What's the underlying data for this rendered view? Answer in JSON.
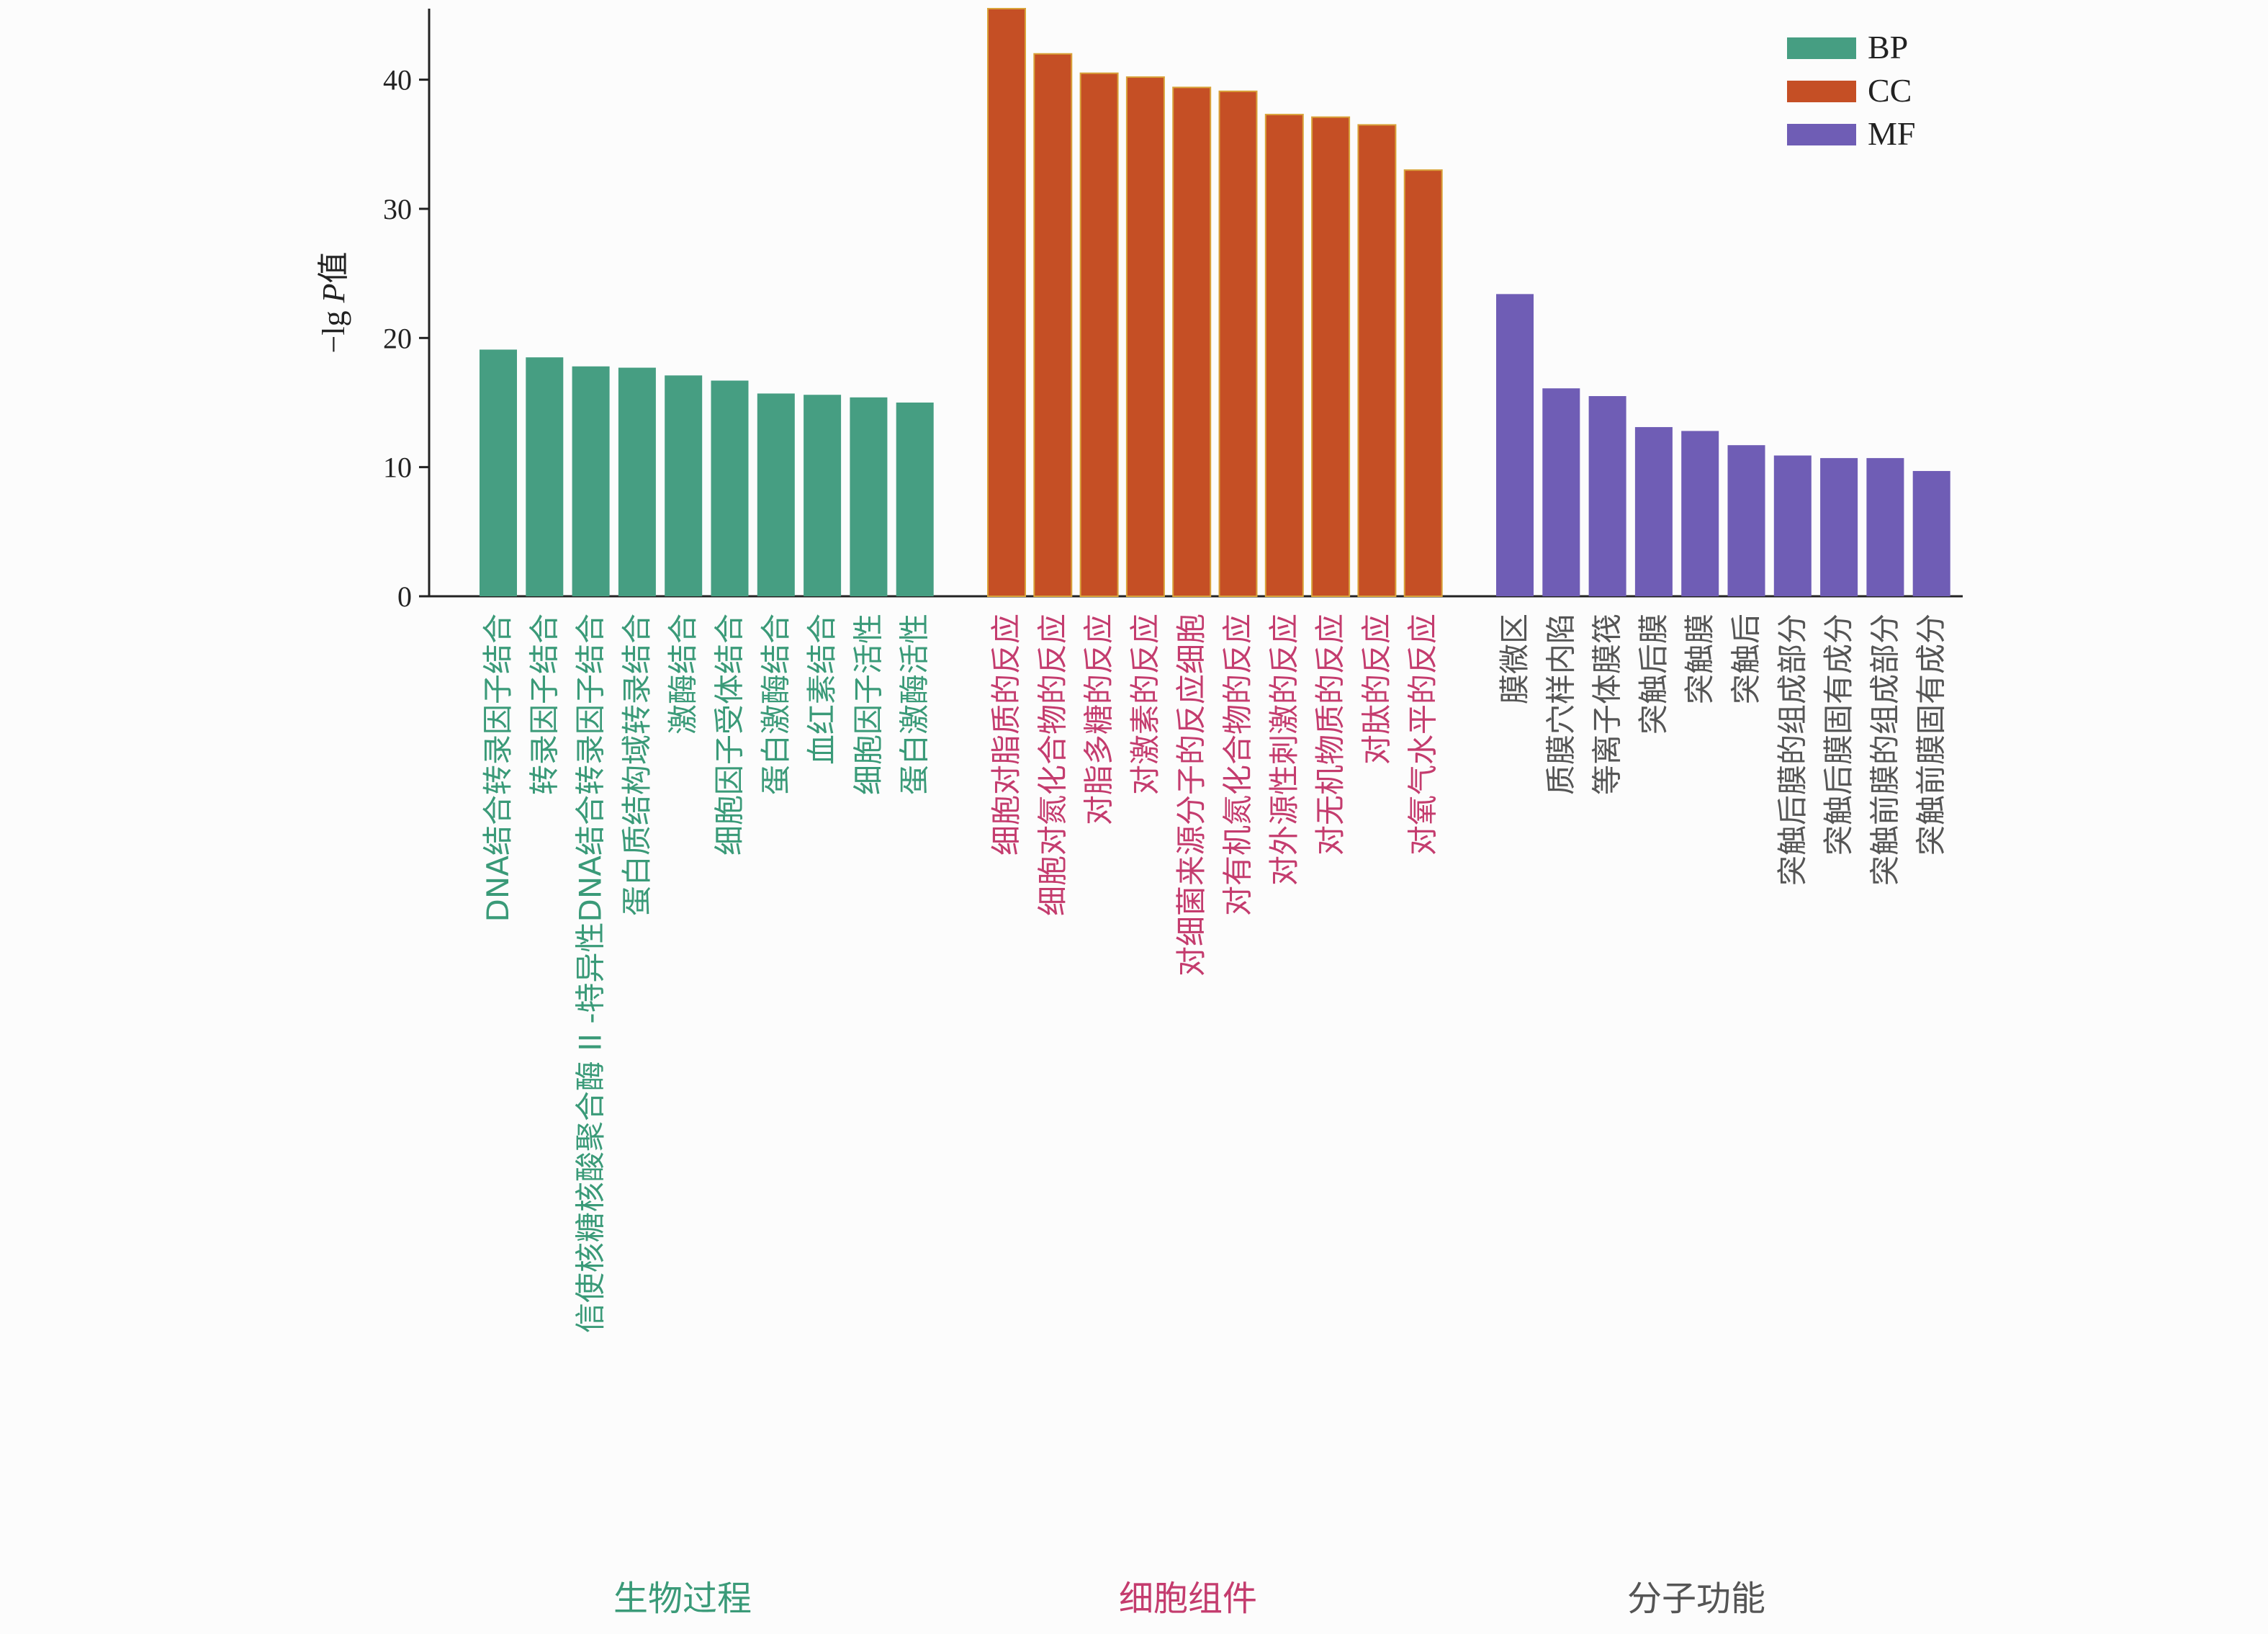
{
  "chart_data": {
    "type": "bar",
    "title": "",
    "ylabel_prefix": "−lg ",
    "ylabel_italic": "P",
    "ylabel_suffix": "值",
    "ylim": [
      0,
      45.5
    ],
    "yticks": [
      0,
      10,
      20,
      30,
      40
    ],
    "grid": false,
    "legend_position": "top-right",
    "series": [
      {
        "name": "BP",
        "color": "#469E82",
        "label_color": "#3A9A78",
        "group_label": "生物过程",
        "categories": [
          "DNA结合转录因子结合",
          "转录因子结合",
          "信使核糖核酸聚合酶 II -特异性DNA结合转录因子结合",
          "蛋白质结构域转录结合",
          "激酶结合",
          "细胞因子受体结合",
          "蛋白激酶结合",
          "血红素结合",
          "细胞因子活性",
          "蛋白激酶活性"
        ],
        "values": [
          19.1,
          18.5,
          17.8,
          17.7,
          17.1,
          16.7,
          15.7,
          15.6,
          15.4,
          15.0
        ]
      },
      {
        "name": "CC",
        "color": "#C54F25",
        "label_color": "#C43C6E",
        "group_label": "细胞组件",
        "categories": [
          "细胞对脂质的反应",
          "细胞对氮化合物的反应",
          "对脂多糖的反应",
          "对激素的反应",
          "对细菌来源分子的反应细胞",
          "对有机氮化合物的反应",
          "对外源性刺激的反应",
          "对无机物质的反应",
          "对肽的反应",
          "对氧气水平的反应"
        ],
        "values": [
          45.5,
          42.0,
          40.5,
          40.2,
          39.4,
          39.1,
          37.3,
          37.1,
          36.5,
          33.0
        ]
      },
      {
        "name": "MF",
        "color": "#6F5DB5",
        "label_color": "#555555",
        "group_label": "分子功能",
        "categories": [
          "膜微区",
          "质膜穴样内陷",
          "等离子体膜筏",
          "突触后膜",
          "突触膜",
          "突触后",
          "突触后膜的组成部分",
          "突触后膜固有成分",
          "突触前膜的组成部分",
          "突触前膜固有成分"
        ],
        "values": [
          23.4,
          16.1,
          15.5,
          13.1,
          12.8,
          11.7,
          10.9,
          10.7,
          10.7,
          9.7
        ]
      }
    ]
  }
}
